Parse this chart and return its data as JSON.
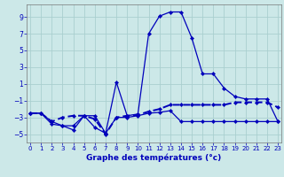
{
  "xlabel": "Graphe des températures (°c)",
  "background_color": "#cce8e8",
  "grid_color": "#aacfcf",
  "line_color": "#0000bb",
  "x_ticks": [
    0,
    1,
    2,
    3,
    4,
    5,
    6,
    7,
    8,
    9,
    10,
    11,
    12,
    13,
    14,
    15,
    16,
    17,
    18,
    19,
    20,
    21,
    22,
    23
  ],
  "y_ticks": [
    -5,
    -3,
    -1,
    1,
    3,
    5,
    7,
    9
  ],
  "ylim": [
    -6.0,
    10.5
  ],
  "xlim": [
    -0.3,
    23.3
  ],
  "series1_x": [
    0,
    1,
    2,
    3,
    4,
    5,
    6,
    7,
    8,
    9,
    10,
    11,
    12,
    13,
    14,
    15,
    16,
    17,
    18,
    19,
    20,
    21,
    22,
    23
  ],
  "series1_y": [
    -2.5,
    -2.5,
    -3.5,
    -4.0,
    -4.5,
    -2.8,
    -2.8,
    -4.9,
    1.2,
    -2.8,
    -2.6,
    7.0,
    9.1,
    9.6,
    9.6,
    6.5,
    2.2,
    2.2,
    0.5,
    -0.5,
    -0.8,
    -0.8,
    -0.8,
    -3.5
  ],
  "series2_x": [
    0,
    1,
    2,
    3,
    4,
    5,
    6,
    7,
    8,
    9,
    10,
    11,
    12,
    13,
    14,
    15,
    16,
    17,
    18,
    19,
    20,
    21,
    22,
    23
  ],
  "series2_y": [
    -2.5,
    -2.5,
    -3.8,
    -4.0,
    -4.0,
    -2.8,
    -4.2,
    -4.9,
    -3.0,
    -3.0,
    -2.8,
    -2.5,
    -2.4,
    -2.2,
    -3.5,
    -3.5,
    -3.5,
    -3.5,
    -3.5,
    -3.5,
    -3.5,
    -3.5,
    -3.5,
    -3.5
  ],
  "series3_x": [
    0,
    1,
    2,
    3,
    4,
    5,
    6,
    7,
    8,
    9,
    10,
    11,
    12,
    13,
    14,
    15,
    16,
    17,
    18,
    19,
    20,
    21,
    22,
    23
  ],
  "series3_y": [
    -2.5,
    -2.5,
    -3.5,
    -3.0,
    -2.8,
    -2.8,
    -3.2,
    -5.0,
    -3.0,
    -2.8,
    -2.7,
    -2.3,
    -2.0,
    -1.5,
    -1.5,
    -1.5,
    -1.5,
    -1.5,
    -1.5,
    -1.2,
    -1.2,
    -1.2,
    -1.2,
    -1.8
  ]
}
